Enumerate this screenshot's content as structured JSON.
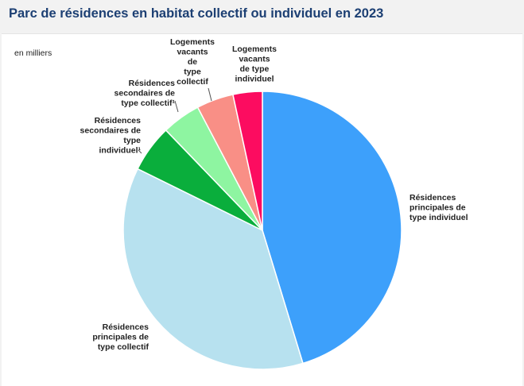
{
  "title": "Parc de résidences en habitat collectif ou individuel en 2023",
  "unit_label": "en milliers",
  "chart_data": {
    "type": "pie",
    "title": "Parc de résidences en habitat collectif ou individuel en 2023",
    "unit": "en milliers",
    "start_angle_deg": 0,
    "direction": "clockwise",
    "series": [
      {
        "name": "Résidences principales de type individuel",
        "label_lines": [
          "Résidences",
          "principales de",
          "type individuel"
        ],
        "share_percent": 45.3,
        "color": "#3da0fb"
      },
      {
        "name": "Résidences principales de type collectif",
        "label_lines": [
          "Résidences",
          "principales de",
          "type collectif"
        ],
        "share_percent": 37.0,
        "color": "#b7e1ef"
      },
      {
        "name": "Résidences secondaires de type individuel¹",
        "label_lines": [
          "Résidences",
          "secondaires de",
          "type",
          "individuel¹"
        ],
        "share_percent": 5.5,
        "color": "#0aae3c"
      },
      {
        "name": "Résidences secondaires de type collectif¹",
        "label_lines": [
          "Résidences",
          "secondaires de",
          "type collectif¹"
        ],
        "share_percent": 4.5,
        "color": "#8ef5a1"
      },
      {
        "name": "Logements vacants de type collectif",
        "label_lines": [
          "Logements",
          "vacants",
          "de",
          "type",
          "collectif"
        ],
        "share_percent": 4.3,
        "color": "#f98f86"
      },
      {
        "name": "Logements vacants de type individuel",
        "label_lines": [
          "Logements",
          "vacants",
          "de type",
          "individuel"
        ],
        "share_percent": 3.4,
        "color": "#fc0c60"
      }
    ]
  }
}
